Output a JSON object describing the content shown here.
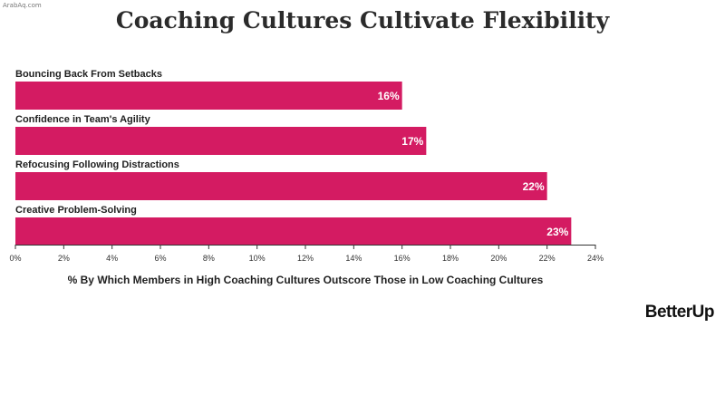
{
  "watermark": "ArabAq.com",
  "brand": "BetterUp",
  "chart_data": {
    "type": "bar",
    "orientation": "horizontal",
    "title": "Coaching Cultures Cultivate Flexibility",
    "xlabel": "% By Which Members in High Coaching Cultures Outscore Those in Low Coaching Cultures",
    "ylabel": "",
    "categories": [
      "Bouncing Back From Setbacks",
      "Confidence in Team's Agility",
      "Refocusing Following Distractions",
      "Creative Problem-Solving"
    ],
    "values": [
      16,
      17,
      22,
      23
    ],
    "value_labels": [
      "16%",
      "17%",
      "22%",
      "23%"
    ],
    "xlim": [
      0,
      24
    ],
    "xticks": [
      "0%",
      "2%",
      "4%",
      "6%",
      "8%",
      "10%",
      "12%",
      "14%",
      "16%",
      "18%",
      "20%",
      "22%",
      "24%"
    ],
    "bar_color": "#d41b62",
    "grid": false,
    "legend": "none"
  }
}
